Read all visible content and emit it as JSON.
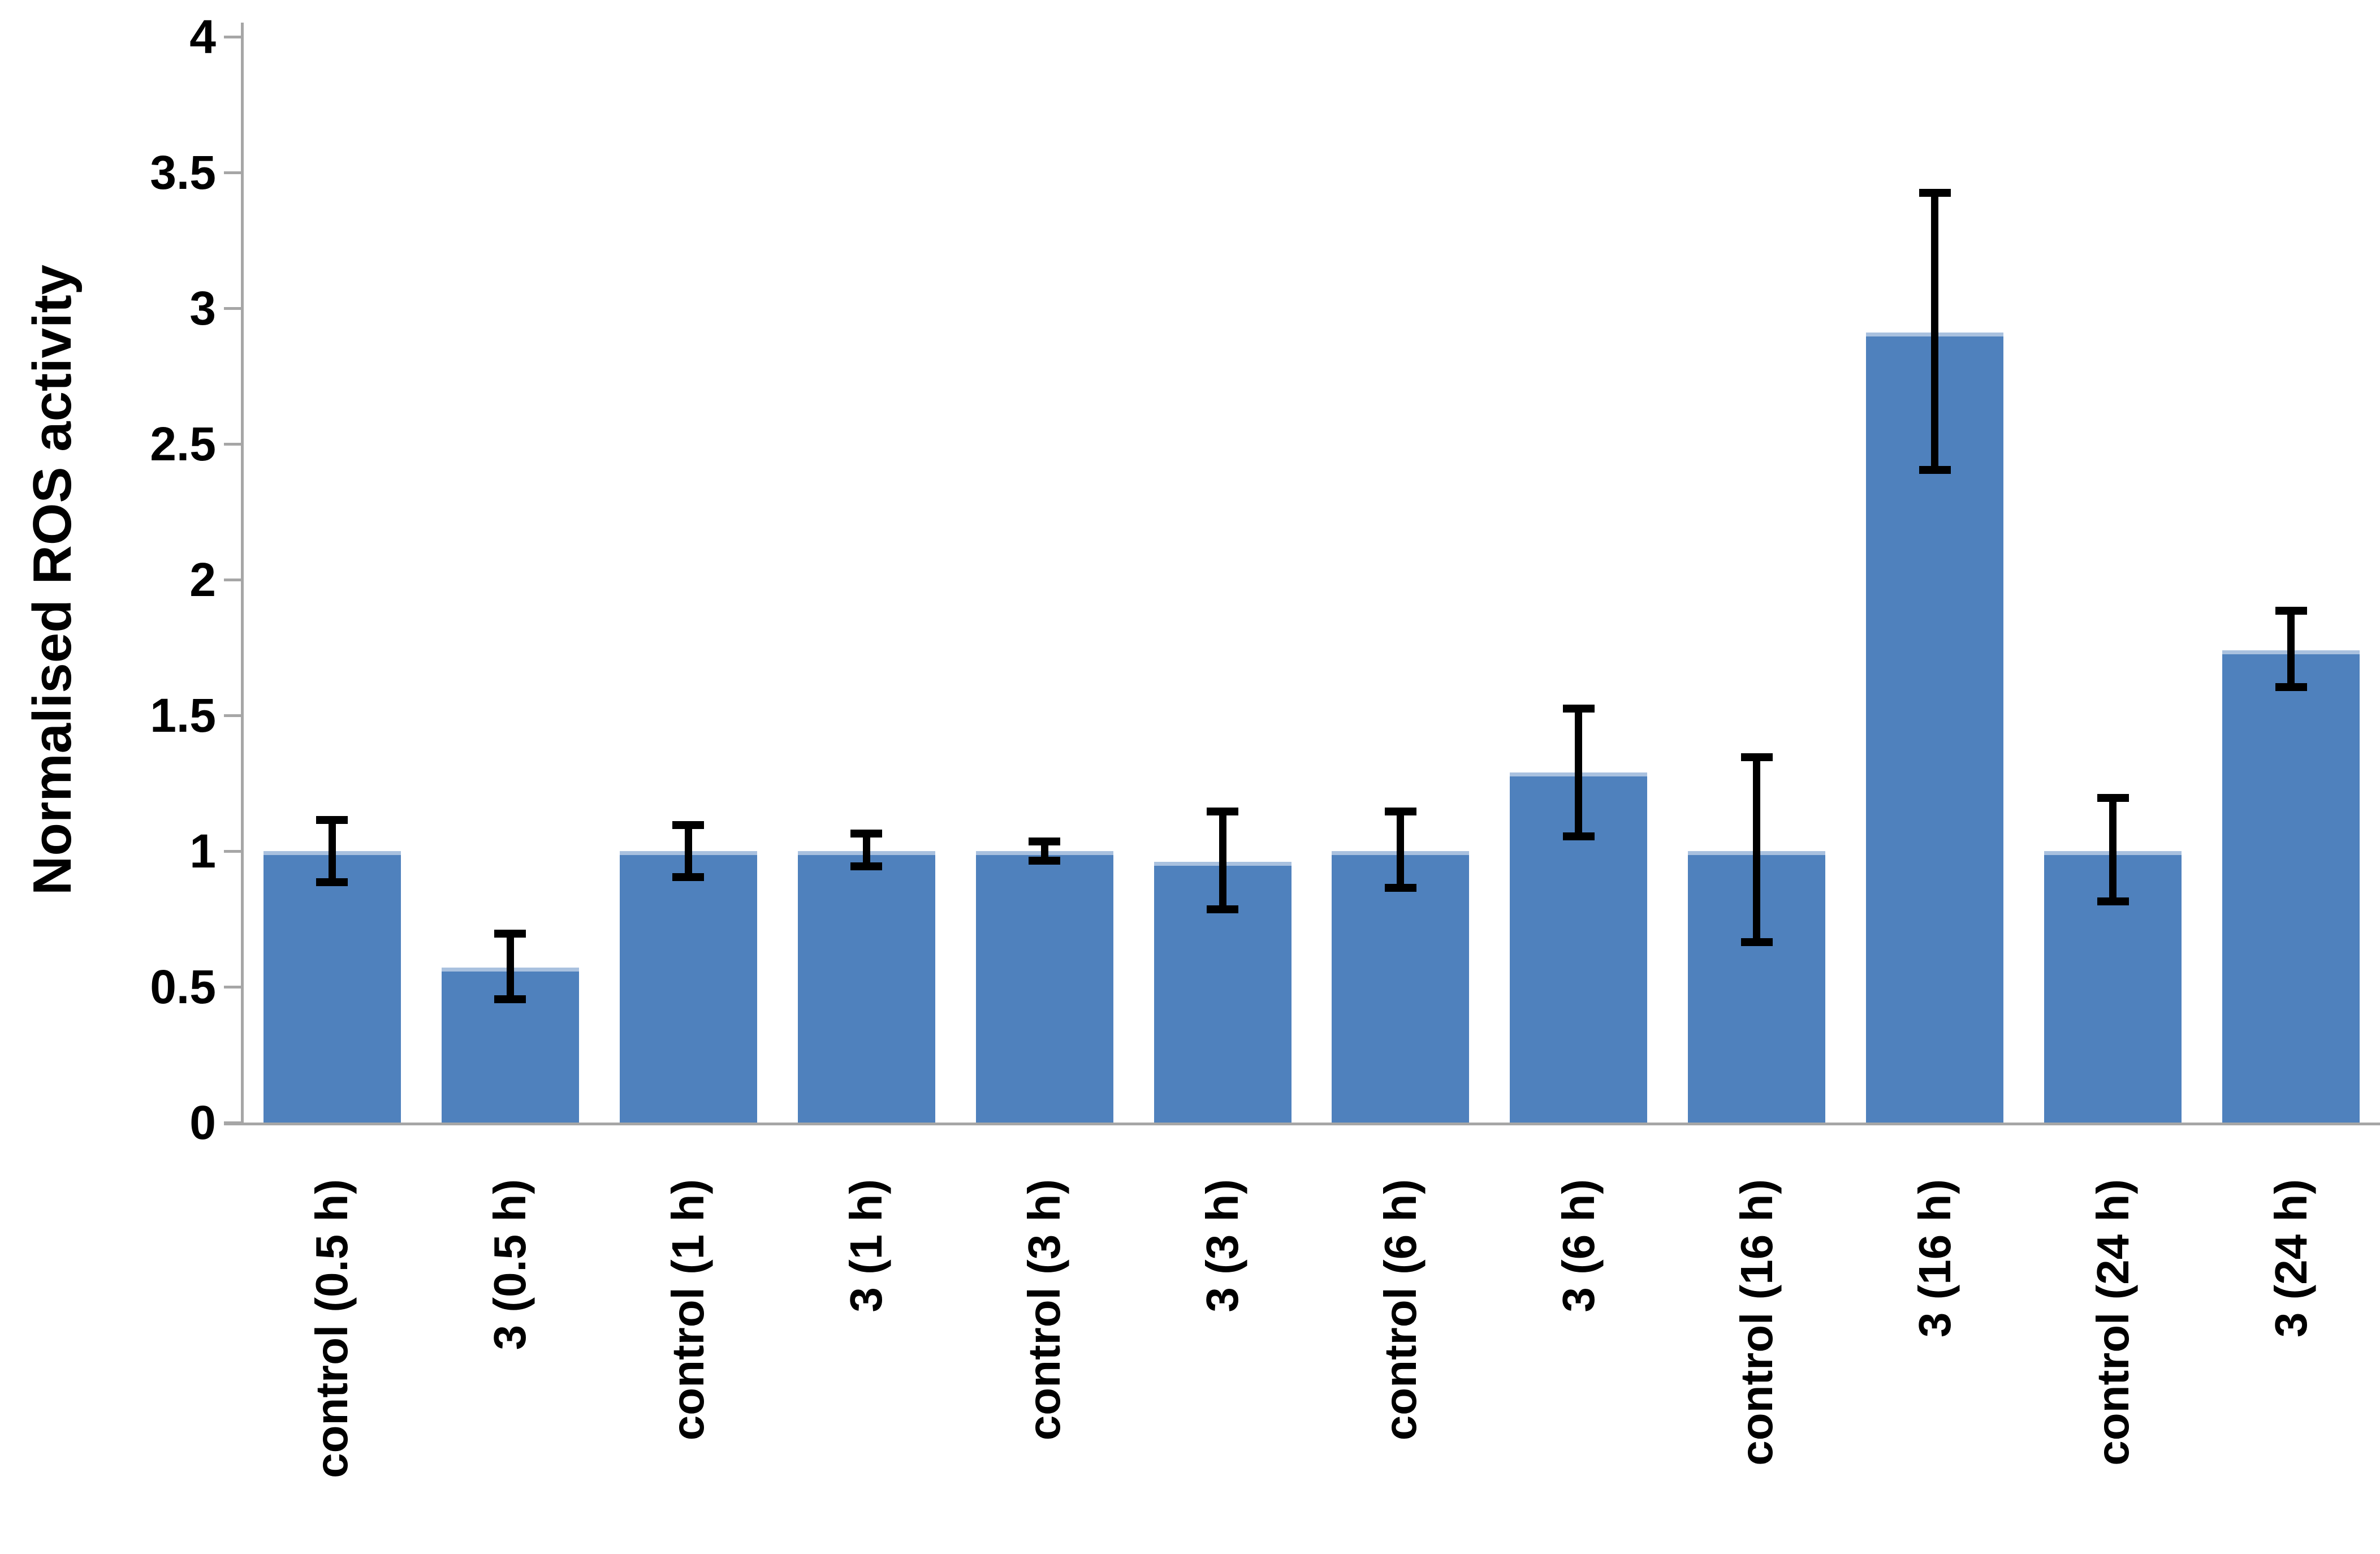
{
  "chart_data": {
    "type": "bar",
    "title": "",
    "xlabel": "",
    "ylabel": "Normalised ROS activity",
    "ylim": [
      0,
      4
    ],
    "yticks": [
      0,
      0.5,
      1,
      1.5,
      2,
      2.5,
      3,
      3.5,
      4
    ],
    "ytick_labels": [
      "0",
      "0.5",
      "1",
      "1.5",
      "2",
      "2.5",
      "3",
      "3.5",
      "4"
    ],
    "grid": false,
    "legend_position": "none",
    "bar_color": "#4F81BD",
    "bar_edge_highlight": "#a9c1df",
    "error_bar_color": "#000000",
    "axis_color": "#a6a6a6",
    "categories": [
      "control (0.5 h)",
      "3 (0.5 h)",
      "control (1 h)",
      "3 (1 h)",
      "control (3 h)",
      "3 (3 h)",
      "control (6 h)",
      "3 (6 h)",
      "control (16 h)",
      "3 (16 h)",
      "control (24 h)",
      "3 (24 h)"
    ],
    "values": [
      1.0,
      0.57,
      1.0,
      1.0,
      1.0,
      0.96,
      1.0,
      1.29,
      1.0,
      2.91,
      1.0,
      1.74
    ],
    "error_whisker_top": [
      1.13,
      0.71,
      1.11,
      1.08,
      1.05,
      1.16,
      1.16,
      1.54,
      1.36,
      3.44,
      1.21,
      1.9
    ],
    "error_whisker_bottom": [
      0.87,
      0.44,
      0.89,
      0.93,
      0.95,
      0.77,
      0.85,
      1.04,
      0.65,
      2.39,
      0.8,
      1.59
    ]
  }
}
